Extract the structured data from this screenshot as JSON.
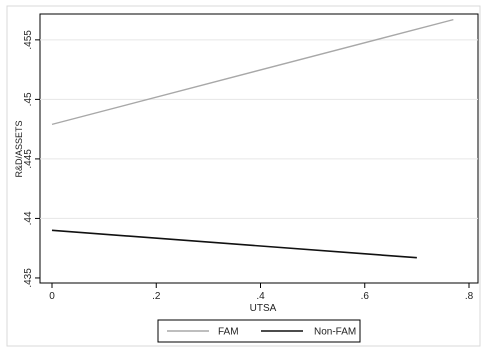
{
  "chart_data": {
    "type": "line",
    "title": "",
    "xlabel": "UTSA",
    "ylabel": "R&D/ASSETS",
    "xlim": [
      0,
      0.8
    ],
    "ylim": [
      0.435,
      0.4565
    ],
    "x_ticks": [
      {
        "value": 0,
        "label": "0"
      },
      {
        "value": 0.2,
        "label": ".2"
      },
      {
        "value": 0.4,
        "label": ".4"
      },
      {
        "value": 0.6,
        "label": ".6"
      },
      {
        "value": 0.8,
        "label": ".8"
      }
    ],
    "y_ticks": [
      {
        "value": 0.435,
        "label": ".435"
      },
      {
        "value": 0.44,
        "label": ".44"
      },
      {
        "value": 0.445,
        "label": ".445"
      },
      {
        "value": 0.45,
        "label": ".45"
      },
      {
        "value": 0.455,
        "label": ".455"
      }
    ],
    "grid": "horizontal",
    "legend_position": "bottom",
    "series": [
      {
        "name": "FAM",
        "color": "#a8a8a8",
        "x": [
          0,
          0.77
        ],
        "y": [
          0.4479,
          0.4567
        ]
      },
      {
        "name": "Non-FAM",
        "color": "#111111",
        "x": [
          0,
          0.7
        ],
        "y": [
          0.439,
          0.4367
        ]
      }
    ]
  }
}
